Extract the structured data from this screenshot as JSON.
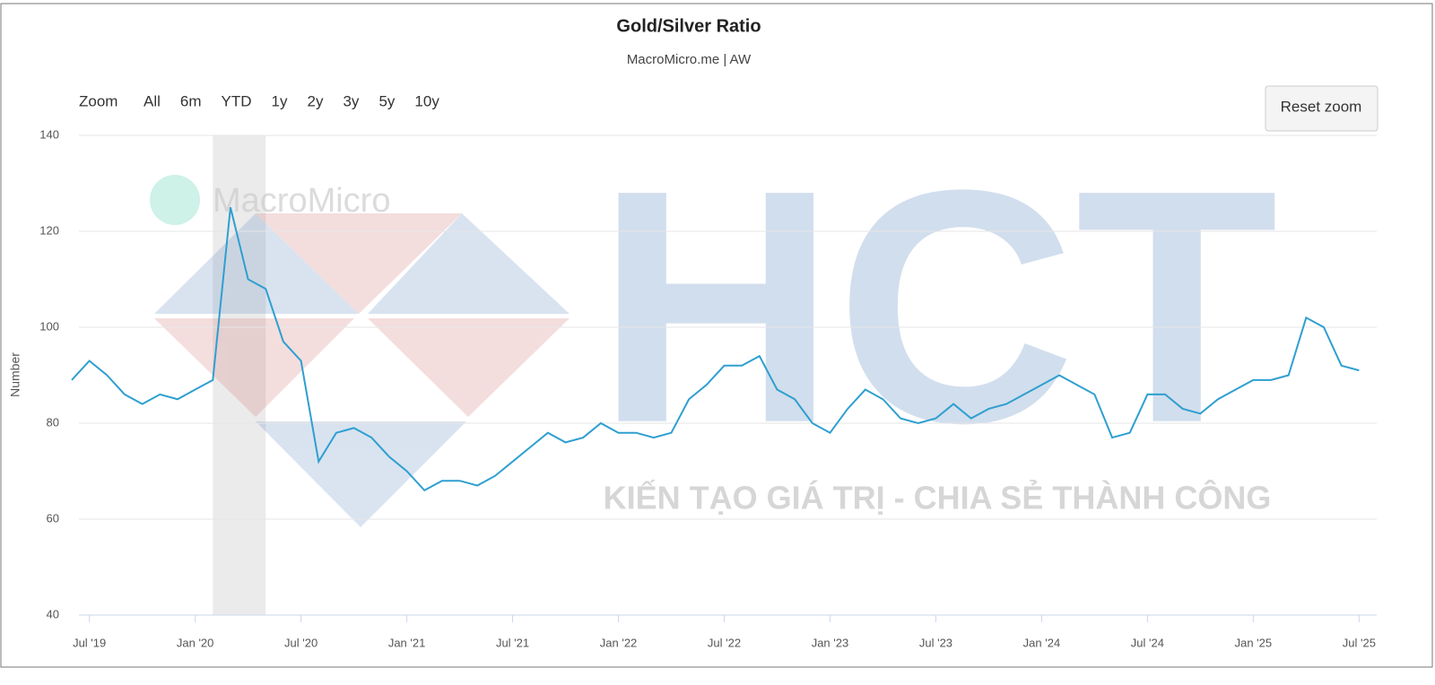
{
  "chart_data": {
    "type": "line",
    "title": "Gold/Silver Ratio",
    "subtitle": "MacroMicro.me | AW",
    "y_label": "Number",
    "range_selector": {
      "label": "Zoom",
      "buttons": [
        "All",
        "6m",
        "YTD",
        "1y",
        "2y",
        "3y",
        "5y",
        "10y"
      ]
    },
    "reset_button": "Reset zoom",
    "watermarks": [
      "MacroMicro",
      "HCT",
      "KIẾN TẠO GIÁ TRỊ - CHIA SẺ THÀNH CÔNG"
    ],
    "plot_bands": [
      [
        "2020-02",
        "2020-05"
      ]
    ],
    "x": [
      "2019-06",
      "2019-07",
      "2019-08",
      "2019-09",
      "2019-10",
      "2019-11",
      "2019-12",
      "2020-01",
      "2020-02",
      "2020-03",
      "2020-04",
      "2020-05",
      "2020-06",
      "2020-07",
      "2020-08",
      "2020-09",
      "2020-10",
      "2020-11",
      "2020-12",
      "2021-01",
      "2021-02",
      "2021-03",
      "2021-04",
      "2021-05",
      "2021-06",
      "2021-07",
      "2021-08",
      "2021-09",
      "2021-10",
      "2021-11",
      "2021-12",
      "2022-01",
      "2022-02",
      "2022-03",
      "2022-04",
      "2022-05",
      "2022-06",
      "2022-07",
      "2022-08",
      "2022-09",
      "2022-10",
      "2022-11",
      "2022-12",
      "2023-01",
      "2023-02",
      "2023-03",
      "2023-04",
      "2023-05",
      "2023-06",
      "2023-07",
      "2023-08",
      "2023-09",
      "2023-10",
      "2023-11",
      "2023-12",
      "2024-01",
      "2024-02",
      "2024-03",
      "2024-04",
      "2024-05",
      "2024-06",
      "2024-07",
      "2024-08",
      "2024-09",
      "2024-10",
      "2024-11",
      "2024-12",
      "2025-01",
      "2025-02",
      "2025-03",
      "2025-04",
      "2025-05",
      "2025-06",
      "2025-07"
    ],
    "series": [
      {
        "name": "Gold/Silver Ratio",
        "color": "#2e9fd0",
        "values": [
          89,
          93,
          90,
          86,
          84,
          86,
          85,
          87,
          89,
          125,
          110,
          108,
          97,
          93,
          72,
          78,
          79,
          77,
          73,
          70,
          66,
          68,
          68,
          67,
          69,
          72,
          75,
          78,
          76,
          77,
          80,
          78,
          78,
          77,
          78,
          85,
          88,
          92,
          92,
          94,
          87,
          85,
          80,
          78,
          83,
          87,
          85,
          81,
          80,
          81,
          84,
          81,
          83,
          84,
          86,
          88,
          90,
          88,
          86,
          77,
          78,
          86,
          86,
          83,
          82,
          85,
          87,
          89,
          89,
          90,
          102,
          100,
          92,
          91
        ]
      }
    ],
    "xlim": [
      "2019-06",
      "2025-08"
    ],
    "xticks": [
      {
        "value": "2019-07",
        "label": "Jul '19"
      },
      {
        "value": "2020-01",
        "label": "Jan '20"
      },
      {
        "value": "2020-07",
        "label": "Jul '20"
      },
      {
        "value": "2021-01",
        "label": "Jan '21"
      },
      {
        "value": "2021-07",
        "label": "Jul '21"
      },
      {
        "value": "2022-01",
        "label": "Jan '22"
      },
      {
        "value": "2022-07",
        "label": "Jul '22"
      },
      {
        "value": "2023-01",
        "label": "Jan '23"
      },
      {
        "value": "2023-07",
        "label": "Jul '23"
      },
      {
        "value": "2024-01",
        "label": "Jan '24"
      },
      {
        "value": "2024-07",
        "label": "Jul '24"
      },
      {
        "value": "2025-01",
        "label": "Jan '25"
      },
      {
        "value": "2025-07",
        "label": "Jul '25"
      }
    ],
    "ylim": [
      40,
      140
    ],
    "yticks": [
      40,
      60,
      80,
      100,
      120,
      140
    ],
    "grid": true
  }
}
